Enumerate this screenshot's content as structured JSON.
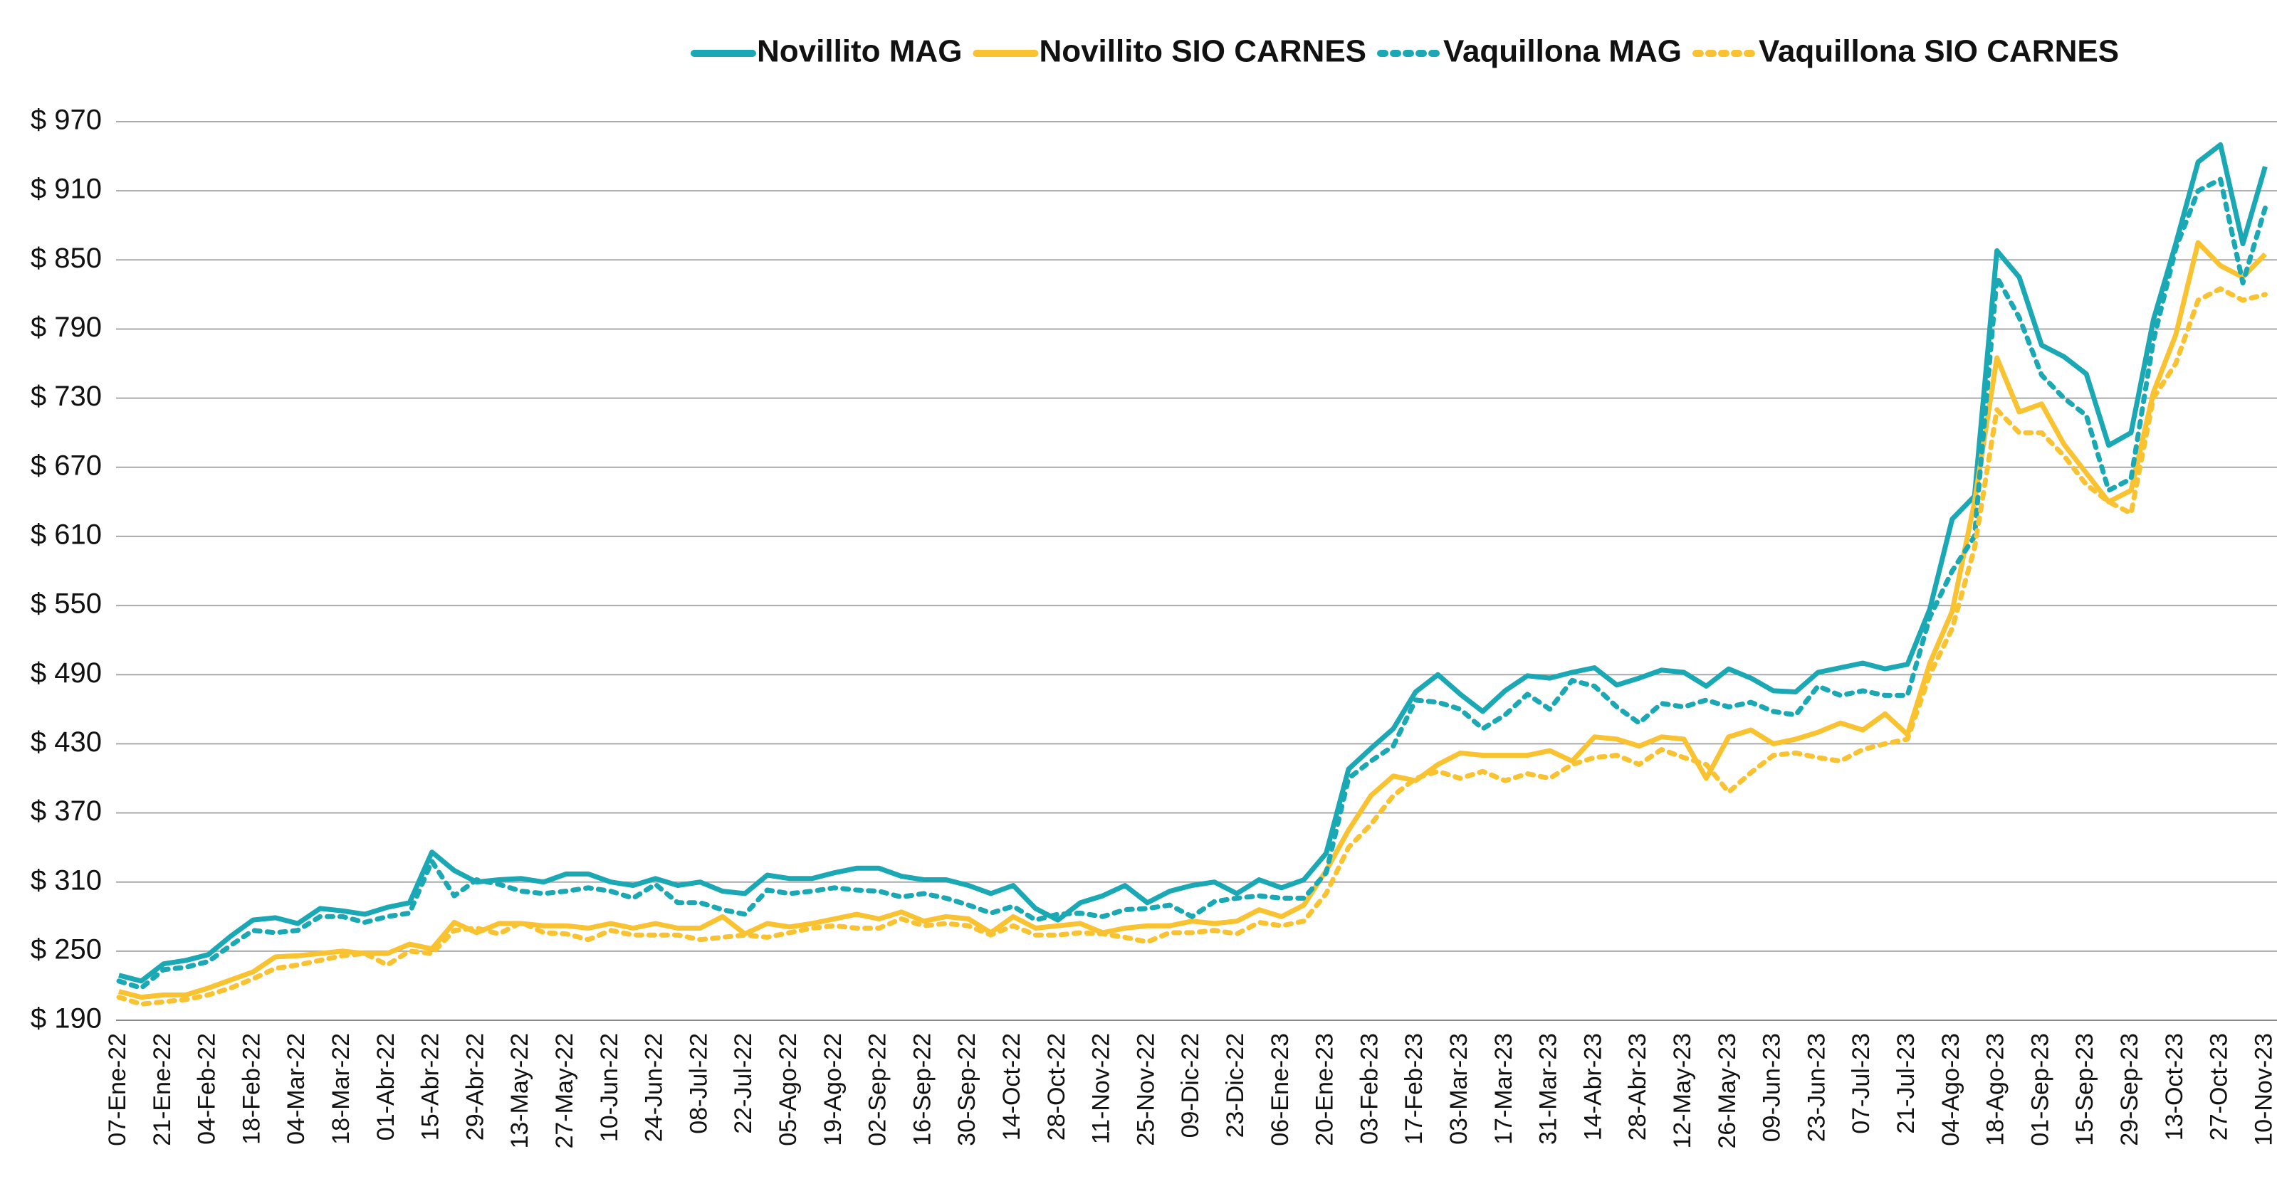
{
  "chart_data": {
    "type": "line",
    "categories": [
      "07-Ene-22",
      null,
      "21-Ene-22",
      null,
      "04-Feb-22",
      null,
      "18-Feb-22",
      null,
      "04-Mar-22",
      null,
      "18-Mar-22",
      null,
      "01-Abr-22",
      null,
      "15-Abr-22",
      null,
      "29-Abr-22",
      null,
      "13-May-22",
      null,
      "27-May-22",
      null,
      "10-Jun-22",
      null,
      "24-Jun-22",
      null,
      "08-Jul-22",
      null,
      "22-Jul-22",
      null,
      "05-Ago-22",
      null,
      "19-Ago-22",
      null,
      "02-Sep-22",
      null,
      "16-Sep-22",
      null,
      "30-Sep-22",
      null,
      "14-Oct-22",
      null,
      "28-Oct-22",
      null,
      "11-Nov-22",
      null,
      "25-Nov-22",
      null,
      "09-Dic-22",
      null,
      "23-Dic-22",
      null,
      "06-Ene-23",
      null,
      "20-Ene-23",
      null,
      "03-Feb-23",
      null,
      "17-Feb-23",
      null,
      "03-Mar-23",
      null,
      "17-Mar-23",
      null,
      "31-Mar-23",
      null,
      "14-Abr-23",
      null,
      "28-Abr-23",
      null,
      "12-May-23",
      null,
      "26-May-23",
      null,
      "09-Jun-23",
      null,
      "23-Jun-23",
      null,
      "07-Jul-23",
      null,
      "21-Jul-23",
      null,
      "04-Ago-23",
      null,
      "18-Ago-23",
      null,
      "01-Sep-23",
      null,
      "15-Sep-23",
      null,
      "29-Sep-23",
      null,
      "13-Oct-23",
      null,
      "27-Oct-23",
      null,
      "10-Nov-23"
    ],
    "series": [
      {
        "name": "Novillito MAG",
        "color": "#1ba8b5",
        "line_style": "solid",
        "values": [
          229,
          224,
          239,
          242,
          247,
          263,
          277,
          279,
          274,
          287,
          285,
          282,
          288,
          292,
          336,
          320,
          310,
          312,
          313,
          310,
          317,
          317,
          310,
          307,
          313,
          307,
          310,
          302,
          300,
          316,
          313,
          313,
          318,
          322,
          322,
          315,
          312,
          312,
          307,
          300,
          307,
          287,
          277,
          292,
          298,
          307,
          292,
          302,
          307,
          310,
          300,
          312,
          305,
          312,
          335,
          408,
          426,
          443,
          475,
          490,
          473,
          458,
          476,
          489,
          487,
          492,
          496,
          481,
          487,
          494,
          492,
          480,
          495,
          487,
          476,
          475,
          492,
          496,
          500,
          495,
          499,
          547,
          625,
          645,
          858,
          835,
          776,
          766,
          751,
          689,
          700,
          798,
          864,
          935,
          950,
          864,
          931
        ]
      },
      {
        "name": "Novillito SIO CARNES",
        "color": "#f9c231",
        "line_style": "solid",
        "values": [
          215,
          210,
          212,
          212,
          218,
          225,
          232,
          245,
          246,
          248,
          250,
          248,
          248,
          256,
          252,
          275,
          266,
          274,
          274,
          272,
          272,
          270,
          274,
          270,
          274,
          270,
          270,
          280,
          265,
          274,
          271,
          274,
          278,
          282,
          278,
          284,
          276,
          280,
          278,
          266,
          280,
          270,
          272,
          274,
          266,
          270,
          272,
          272,
          276,
          274,
          276,
          286,
          280,
          290,
          320,
          355,
          385,
          402,
          398,
          412,
          422,
          420,
          420,
          420,
          424,
          415,
          436,
          434,
          428,
          436,
          434,
          400,
          436,
          442,
          430,
          434,
          440,
          448,
          442,
          456,
          438,
          500,
          545,
          640,
          765,
          718,
          725,
          690,
          665,
          640,
          650,
          735,
          785,
          865,
          845,
          835,
          855
        ]
      },
      {
        "name": "Vaquillona MAG",
        "color": "#1ba8b5",
        "line_style": "dashed",
        "values": [
          224,
          218,
          234,
          236,
          241,
          255,
          268,
          266,
          268,
          280,
          280,
          275,
          280,
          283,
          328,
          298,
          312,
          308,
          302,
          300,
          302,
          305,
          302,
          296,
          308,
          292,
          292,
          286,
          282,
          303,
          300,
          302,
          305,
          303,
          302,
          297,
          300,
          296,
          290,
          283,
          289,
          277,
          282,
          283,
          280,
          286,
          287,
          290,
          280,
          293,
          296,
          298,
          296,
          296,
          318,
          400,
          415,
          428,
          468,
          466,
          460,
          443,
          455,
          473,
          460,
          485,
          480,
          462,
          448,
          465,
          462,
          468,
          462,
          466,
          458,
          455,
          480,
          472,
          476,
          472,
          472,
          540,
          580,
          610,
          835,
          800,
          750,
          730,
          715,
          650,
          660,
          780,
          860,
          910,
          920,
          830,
          895
        ]
      },
      {
        "name": "Vaquillona SIO CARNES",
        "color": "#f9c231",
        "line_style": "dashed",
        "values": [
          210,
          204,
          206,
          208,
          212,
          218,
          226,
          235,
          238,
          242,
          246,
          248,
          238,
          250,
          248,
          268,
          270,
          265,
          275,
          266,
          265,
          260,
          268,
          264,
          264,
          264,
          260,
          262,
          264,
          262,
          266,
          270,
          272,
          270,
          270,
          278,
          272,
          274,
          272,
          264,
          272,
          264,
          264,
          266,
          265,
          262,
          258,
          266,
          266,
          268,
          265,
          275,
          272,
          276,
          300,
          340,
          360,
          385,
          400,
          406,
          400,
          406,
          398,
          404,
          400,
          412,
          418,
          420,
          412,
          425,
          418,
          412,
          388,
          405,
          420,
          422,
          418,
          415,
          425,
          430,
          434,
          490,
          530,
          600,
          720,
          700,
          700,
          680,
          655,
          640,
          630,
          730,
          760,
          815,
          825,
          815,
          820
        ]
      }
    ],
    "ylim": [
      190,
      970
    ],
    "yticks": [
      {
        "value": 190,
        "label": "$ 190"
      },
      {
        "value": 250,
        "label": "$ 250"
      },
      {
        "value": 310,
        "label": "$ 310"
      },
      {
        "value": 370,
        "label": "$ 370"
      },
      {
        "value": 430,
        "label": "$ 430"
      },
      {
        "value": 490,
        "label": "$ 490"
      },
      {
        "value": 550,
        "label": "$ 550"
      },
      {
        "value": 610,
        "label": "$ 610"
      },
      {
        "value": 670,
        "label": "$ 670"
      },
      {
        "value": 730,
        "label": "$ 730"
      },
      {
        "value": 790,
        "label": "$ 790"
      },
      {
        "value": 850,
        "label": "$ 850"
      },
      {
        "value": 910,
        "label": "$ 910"
      },
      {
        "value": 970,
        "label": "$ 970"
      }
    ],
    "grid": true,
    "legend": "top"
  }
}
